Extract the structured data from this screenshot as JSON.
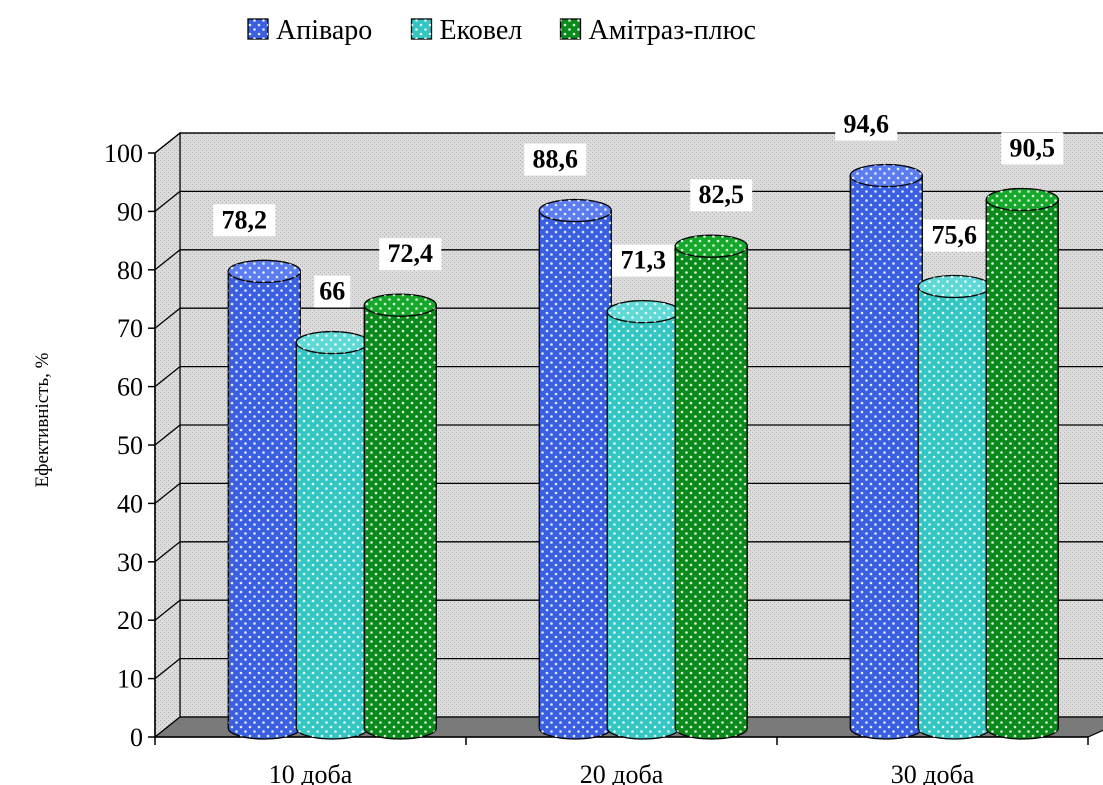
{
  "chart_data": {
    "type": "bar",
    "style": "3d-cylinder",
    "categories": [
      "10 доба",
      "20 доба",
      "30 доба"
    ],
    "series": [
      {
        "name": "Апіваро",
        "values": [
          78.2,
          88.6,
          94.6
        ],
        "labels": [
          "78,2",
          "88,6",
          "94,6"
        ],
        "color": "#3a5fe0",
        "top_color": "#5b7df0"
      },
      {
        "name": "Ековел",
        "values": [
          66,
          71.3,
          75.6
        ],
        "labels": [
          "66",
          "71,3",
          "75,6"
        ],
        "color": "#33c6c2",
        "top_color": "#5fd9d6"
      },
      {
        "name": "Амітраз-плюс",
        "values": [
          72.4,
          82.5,
          90.5
        ],
        "labels": [
          "72,4",
          "82,5",
          "90,5"
        ],
        "color": "#0a8a1a",
        "top_color": "#16a82a"
      }
    ],
    "title": "",
    "xlabel": "",
    "ylabel": "Ефективність, %",
    "ylim": [
      0,
      100
    ],
    "yticks": [
      0,
      10,
      20,
      30,
      40,
      50,
      60,
      70,
      80,
      90,
      100
    ],
    "grid": true,
    "legend": "top-center",
    "colors": {
      "wall": "#d4d4d4",
      "floor": "#7a7a7a",
      "axis": "#000000"
    }
  }
}
